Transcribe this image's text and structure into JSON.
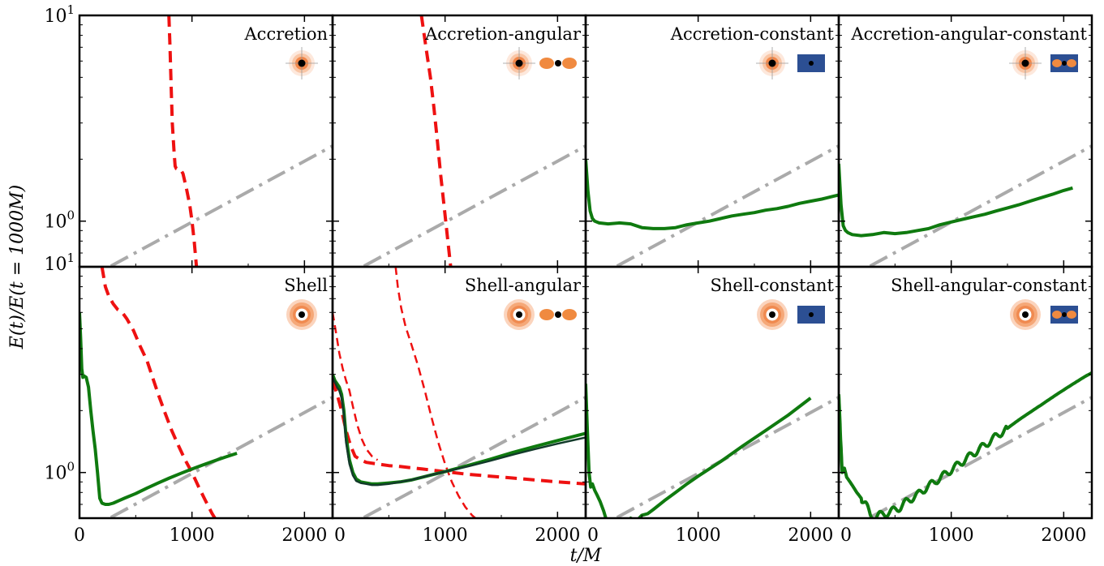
{
  "chart_data": {
    "type": "line",
    "xlabel": "t/M",
    "ylabel": "E(t)/E(t = 1000M)",
    "x_range": [
      0,
      2250
    ],
    "x_ticks": [
      "0",
      "1000",
      "2000"
    ],
    "y_scale": "log",
    "y_range_top_row": [
      0.6,
      10
    ],
    "y_range_bottom_row": [
      0.6,
      10
    ],
    "y_tick_labels": {
      "top": "10",
      "top_exp": "1",
      "mid": "10",
      "mid_exp": "0"
    },
    "reference_line": {
      "style": "dash-dot",
      "color": "#aaaaaa",
      "x": [
        0,
        2250
      ],
      "y": [
        0.5,
        2.32
      ]
    },
    "panels": [
      {
        "title": "Accretion",
        "row": 0,
        "col": 0,
        "icons": [
          "accretion-disk-icon"
        ],
        "series": [
          {
            "color": "#ee1111",
            "style": "dashed",
            "width": 4,
            "x": [
              795,
              805,
              815,
              825,
              840,
              850,
              860,
              880,
              900,
              920,
              950,
              980,
              1000,
              1020,
              1040
            ],
            "y": [
              10,
              7,
              4.5,
              3,
              2.2,
              1.85,
              1.8,
              1.78,
              1.78,
              1.7,
              1.45,
              1.2,
              1.0,
              0.8,
              0.6
            ]
          }
        ]
      },
      {
        "title": "Accretion-angular",
        "row": 0,
        "col": 1,
        "icons": [
          "accretion-disk-icon",
          "dipole-icon"
        ],
        "series": [
          {
            "color": "#ee1111",
            "style": "dashed",
            "width": 4,
            "x": [
              790,
              830,
              870,
              900,
              930,
              960,
              990,
              1020,
              1050
            ],
            "y": [
              10,
              7,
              5,
              3.6,
              2.5,
              1.7,
              1.2,
              0.85,
              0.6
            ]
          }
        ]
      },
      {
        "title": "Accretion-constant",
        "row": 0,
        "col": 2,
        "icons": [
          "accretion-disk-icon",
          "constant-field-icon"
        ],
        "series": [
          {
            "color": "#0f7a0f",
            "style": "solid",
            "width": 4,
            "x": [
              0,
              20,
              40,
              60,
              80,
              120,
              200,
              300,
              400,
              500,
              600,
              700,
              800,
              900,
              1000,
              1100,
              1200,
              1300,
              1400,
              1500,
              1600,
              1700,
              1800,
              1900,
              2000,
              2100,
              2200,
              2250
            ],
            "y": [
              2.0,
              1.4,
              1.12,
              1.03,
              1.0,
              0.98,
              0.97,
              0.98,
              0.97,
              0.93,
              0.92,
              0.92,
              0.93,
              0.96,
              0.98,
              1.0,
              1.03,
              1.06,
              1.08,
              1.1,
              1.13,
              1.15,
              1.18,
              1.22,
              1.25,
              1.28,
              1.32,
              1.34
            ]
          }
        ]
      },
      {
        "title": "Accretion-angular-constant",
        "row": 0,
        "col": 3,
        "icons": [
          "accretion-disk-icon",
          "dipole-field-icon"
        ],
        "series": [
          {
            "color": "#0f7a0f",
            "style": "solid",
            "width": 4,
            "x": [
              0,
              20,
              40,
              60,
              80,
              120,
              200,
              300,
              400,
              500,
              600,
              700,
              800,
              900,
              1000,
              1100,
              1200,
              1300,
              1400,
              1500,
              1600,
              1700,
              1800,
              1900,
              2000,
              2080
            ],
            "y": [
              1.9,
              1.2,
              0.95,
              0.9,
              0.88,
              0.86,
              0.85,
              0.86,
              0.88,
              0.87,
              0.88,
              0.9,
              0.92,
              0.96,
              0.99,
              1.02,
              1.05,
              1.08,
              1.12,
              1.16,
              1.2,
              1.25,
              1.3,
              1.35,
              1.41,
              1.45
            ]
          }
        ]
      },
      {
        "title": "Shell",
        "row": 1,
        "col": 0,
        "icons": [
          "shell-icon"
        ],
        "series": [
          {
            "color": "#ee1111",
            "style": "dashed",
            "width": 4,
            "x": [
              200,
              230,
              260,
              300,
              340,
              380,
              420,
              480,
              540,
              600,
              650,
              700,
              760,
              820,
              880,
              940,
              1000,
              1060,
              1120,
              1180,
              1220
            ],
            "y": [
              10,
              8,
              7.2,
              6.6,
              6.2,
              6.0,
              5.6,
              4.9,
              4.1,
              3.5,
              2.9,
              2.4,
              1.95,
              1.6,
              1.35,
              1.15,
              1.0,
              0.85,
              0.73,
              0.63,
              0.58
            ]
          },
          {
            "color": "#0f7a0f",
            "style": "solid",
            "width": 4,
            "x": [
              0,
              10,
              20,
              30,
              40,
              60,
              80,
              100,
              120,
              140,
              160,
              180,
              200,
              230,
              260,
              300,
              350,
              400,
              500,
              600,
              700,
              800,
              900,
              1000,
              1100,
              1200,
              1300,
              1400
            ],
            "y": [
              6.0,
              4.5,
              3.2,
              2.9,
              2.95,
              2.9,
              2.6,
              2.0,
              1.6,
              1.3,
              1.0,
              0.75,
              0.71,
              0.7,
              0.7,
              0.71,
              0.73,
              0.75,
              0.79,
              0.84,
              0.89,
              0.94,
              0.99,
              1.04,
              1.09,
              1.14,
              1.19,
              1.24
            ]
          }
        ]
      },
      {
        "title": "Shell-angular",
        "row": 1,
        "col": 1,
        "icons": [
          "shell-icon",
          "dipole-icon"
        ],
        "series": [
          {
            "color": "#ee1111",
            "style": "dashed",
            "width": 2.5,
            "x": [
              560,
              580,
              610,
              650,
              700,
              760,
              820,
              880,
              940,
              1000,
              1060,
              1120,
              1180,
              1240,
              1300
            ],
            "y": [
              10,
              8,
              6.3,
              5.1,
              4.2,
              3.3,
              2.5,
              1.85,
              1.4,
              1.1,
              0.9,
              0.77,
              0.68,
              0.62,
              0.58
            ]
          },
          {
            "color": "#ee1111",
            "style": "dashed",
            "width": 2.5,
            "x": [
              0,
              30,
              60,
              90,
              120,
              150,
              180,
              220,
              260,
              300,
              350,
              400
            ],
            "y": [
              6.0,
              4.8,
              3.8,
              3.2,
              2.8,
              2.5,
              2.1,
              1.7,
              1.45,
              1.3,
              1.2,
              1.15
            ]
          },
          {
            "color": "#ee1111",
            "style": "dashed",
            "width": 4,
            "x": [
              0,
              40,
              80,
              120,
              160,
              200,
              250,
              300,
              400,
              500,
              600,
              800,
              1000,
              1200,
              1400,
              1600,
              1800,
              2000,
              2250
            ],
            "y": [
              2.8,
              2.4,
              2.0,
              1.6,
              1.35,
              1.2,
              1.15,
              1.12,
              1.1,
              1.08,
              1.07,
              1.04,
              1.01,
              0.98,
              0.96,
              0.94,
              0.92,
              0.9,
              0.88
            ]
          },
          {
            "color": "#0f7a0f",
            "style": "solid",
            "width": 4,
            "x": [
              0,
              20,
              40,
              60,
              80,
              100,
              120,
              150,
              180,
              210,
              250,
              300,
              350,
              400,
              500,
              600,
              700,
              800,
              900,
              1000,
              1200,
              1400,
              1600,
              1800,
              2000,
              2250
            ],
            "y": [
              3.0,
              2.8,
              2.7,
              2.6,
              2.4,
              2.0,
              1.5,
              1.15,
              1.0,
              0.93,
              0.9,
              0.89,
              0.88,
              0.88,
              0.89,
              0.9,
              0.92,
              0.95,
              0.98,
              1.01,
              1.08,
              1.16,
              1.25,
              1.34,
              1.43,
              1.55
            ]
          },
          {
            "color": "#123a2a",
            "style": "solid",
            "width": 2.5,
            "x": [
              0,
              20,
              40,
              60,
              80,
              100,
              120,
              150,
              180,
              210,
              250,
              300,
              350,
              400,
              500,
              600,
              700,
              800,
              900,
              1000,
              1200,
              1400,
              1600,
              1800,
              2000,
              2250
            ],
            "y": [
              2.9,
              2.75,
              2.6,
              2.5,
              2.3,
              1.9,
              1.4,
              1.1,
              0.97,
              0.91,
              0.89,
              0.88,
              0.87,
              0.87,
              0.88,
              0.9,
              0.92,
              0.95,
              0.98,
              1.01,
              1.07,
              1.14,
              1.22,
              1.3,
              1.38,
              1.48
            ]
          }
        ]
      },
      {
        "title": "Shell-constant",
        "row": 1,
        "col": 2,
        "icons": [
          "shell-icon",
          "constant-field-icon"
        ],
        "series": [
          {
            "color": "#0f7a0f",
            "style": "solid",
            "width": 4,
            "x": [
              0,
              15,
              30,
              45,
              60,
              80,
              100,
              130,
              160,
              200,
              240,
              280,
              320,
              360,
              400,
              450,
              500,
              550,
              600,
              700,
              800,
              900,
              1000,
              1200,
              1400,
              1600,
              1800,
              2000
            ],
            "y": [
              2.7,
              1.6,
              1.0,
              0.85,
              0.88,
              0.82,
              0.78,
              0.72,
              0.65,
              0.55,
              0.52,
              0.5,
              0.52,
              0.56,
              0.6,
              0.58,
              0.62,
              0.63,
              0.66,
              0.73,
              0.8,
              0.88,
              0.96,
              1.13,
              1.35,
              1.6,
              1.9,
              2.3
            ]
          }
        ]
      },
      {
        "title": "Shell-angular-constant",
        "row": 1,
        "col": 3,
        "icons": [
          "shell-icon",
          "dipole-field-icon"
        ],
        "series": [
          {
            "color": "#0f7a0f",
            "style": "solid",
            "width": 4,
            "wiggle": true,
            "x": [
              0,
              15,
              30,
              50,
              70,
              100,
              130,
              160,
              200,
              240,
              280,
              320,
              360,
              400,
              450,
              500,
              550,
              600,
              700,
              800,
              900,
              1000,
              1100,
              1200,
              1300,
              1400,
              1500,
              1600,
              1700,
              1800,
              1900,
              2000,
              2100,
              2200,
              2250
            ],
            "y": [
              2.4,
              1.5,
              1.0,
              1.05,
              0.95,
              0.9,
              0.85,
              0.8,
              0.75,
              0.7,
              0.62,
              0.6,
              0.62,
              0.63,
              0.64,
              0.66,
              0.68,
              0.72,
              0.78,
              0.86,
              0.94,
              1.03,
              1.13,
              1.24,
              1.36,
              1.5,
              1.64,
              1.8,
              1.96,
              2.13,
              2.32,
              2.52,
              2.73,
              2.95,
              3.05
            ]
          }
        ]
      }
    ]
  }
}
